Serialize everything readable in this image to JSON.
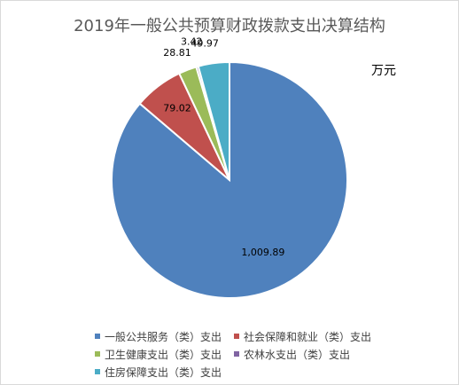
{
  "chart_data": {
    "type": "pie",
    "title": "2019年一般公共预算财政拨款支出决算结构",
    "unit": "万元",
    "categories": [
      "一般公共服务（类）支出",
      "社会保障和就业（类）支出",
      "卫生健康支出（类）支出",
      "农林水支出（类）支出",
      "住房保障支出（类）支出"
    ],
    "values": [
      1009.89,
      79.02,
      28.81,
      3.42,
      49.97
    ],
    "labels": [
      "1,009.89",
      "79.02",
      "28.81",
      "3.42",
      "49.97"
    ],
    "colors": [
      "#4f81bd",
      "#c0504d",
      "#9bbb59",
      "#8064a2",
      "#4bacc6"
    ],
    "legend_position": "bottom"
  }
}
